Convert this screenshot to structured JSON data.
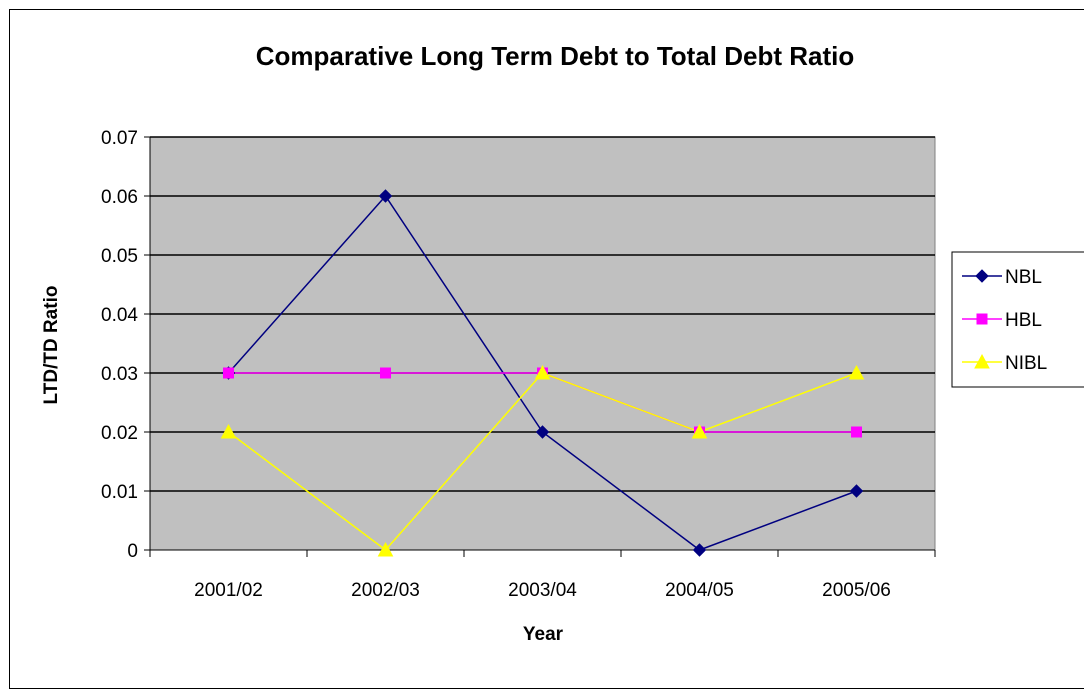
{
  "chart_data": {
    "type": "line",
    "title": "Comparative Long Term Debt to Total Debt Ratio",
    "xlabel": "Year",
    "ylabel": "LTD/TD Ratio",
    "categories": [
      "2001/02",
      "2002/03",
      "2003/04",
      "2004/05",
      "2005/06"
    ],
    "y_ticks": [
      "0",
      "0.01",
      "0.02",
      "0.03",
      "0.04",
      "0.05",
      "0.06",
      "0.07"
    ],
    "ylim": [
      0,
      0.07
    ],
    "grid": true,
    "legend_position": "right",
    "plot_background": "#c0c0c0",
    "series": [
      {
        "name": "NBL",
        "values": [
          0.03,
          0.06,
          0.02,
          0.0,
          0.01
        ],
        "color": "#000080",
        "marker": "diamond"
      },
      {
        "name": "HBL",
        "values": [
          0.03,
          0.03,
          0.03,
          0.02,
          0.02
        ],
        "color": "#ff00ff",
        "marker": "square"
      },
      {
        "name": "NIBL",
        "values": [
          0.02,
          0.0,
          0.03,
          0.02,
          0.03
        ],
        "color": "#ffff00",
        "marker": "triangle"
      }
    ]
  }
}
